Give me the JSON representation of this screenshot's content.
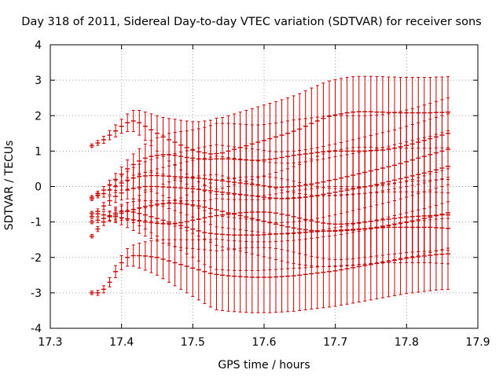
{
  "chart_data": {
    "type": "scatter",
    "title": "Day 318 of 2011, Sidereal Day-to-day VTEC variation (SDTVAR) for receiver sons",
    "xlabel": "GPS time / hours",
    "ylabel": "SDTVAR / TECUs",
    "xlim": [
      17.3,
      17.9
    ],
    "ylim": [
      -4,
      4
    ],
    "xticks": [
      "17.3",
      "17.4",
      "17.5",
      "17.6",
      "17.7",
      "17.8",
      "17.9"
    ],
    "yticks": [
      "-4",
      "-3",
      "-2",
      "-1",
      "0",
      "1",
      "2",
      "3",
      "4"
    ],
    "grid": true,
    "legend": "none",
    "error_bars": true,
    "x_start": 17.3583,
    "x_step": 0.00833,
    "series_color": "#cc0000",
    "series": [
      {
        "start": 17.3583,
        "values": [
          1.15,
          1.23,
          1.32,
          1.45,
          1.57,
          1.7,
          1.8,
          1.85,
          1.8,
          1.7,
          1.6,
          1.5,
          1.4,
          1.32,
          1.25,
          1.17,
          1.1,
          1.03,
          0.98,
          0.95,
          0.92,
          0.93,
          0.95,
          1.0,
          1.05,
          1.1,
          1.15,
          1.2,
          1.25,
          1.3,
          1.35,
          1.4,
          1.45,
          1.5,
          1.56,
          1.62,
          1.7,
          1.78,
          1.85,
          1.92,
          1.98,
          2.02,
          2.05,
          2.08,
          2.1,
          2.11,
          2.11,
          2.11,
          2.1,
          2.1,
          2.09,
          2.09,
          2.08,
          2.08,
          2.08,
          2.08,
          2.08,
          2.08,
          2.09,
          2.09,
          2.1
        ],
        "errors": [
          0.05,
          0.07,
          0.1,
          0.13,
          0.17,
          0.2,
          0.25,
          0.3,
          0.35,
          0.4,
          0.45,
          0.5,
          0.55,
          0.6,
          0.65,
          0.7,
          0.75,
          0.8,
          0.85,
          0.9,
          0.95,
          1.0,
          1.0,
          1.0,
          1.0,
          1.0,
          1.0,
          1.0,
          1.0,
          1.0,
          1.0,
          1.0,
          1.0,
          1.0,
          1.0,
          1.0,
          1.0,
          1.0,
          1.0,
          1.0,
          1.0,
          1.0,
          1.0,
          1.0,
          1.0,
          1.0,
          1.0,
          1.0,
          1.0,
          1.0,
          1.0,
          1.0,
          1.0,
          1.0,
          1.0,
          1.0,
          1.0,
          1.0,
          1.0,
          1.0,
          1.0
        ]
      },
      {
        "start": 17.3583,
        "values": [
          -0.35,
          -0.2,
          -0.1,
          0.05,
          0.2,
          0.35,
          0.5,
          0.62,
          0.72,
          0.8,
          0.85,
          0.88,
          0.9,
          0.9,
          0.88,
          0.85,
          0.82,
          0.8,
          0.78,
          0.77,
          0.77,
          0.78,
          0.78,
          0.78,
          0.77,
          0.76,
          0.75,
          0.74,
          0.74,
          0.75,
          0.77,
          0.79,
          0.82,
          0.85,
          0.88,
          0.9,
          0.92,
          0.94,
          0.96,
          0.98,
          1.0,
          1.0,
          1.0,
          1.0,
          1.0,
          1.0,
          1.0,
          1.01,
          1.02,
          1.03,
          1.05,
          1.08,
          1.12,
          1.16,
          1.2,
          1.25,
          1.3,
          1.35,
          1.4,
          1.45,
          1.5
        ],
        "errors": [
          0.05,
          0.07,
          0.1,
          0.13,
          0.17,
          0.2,
          0.25,
          0.3,
          0.35,
          0.4,
          0.45,
          0.5,
          0.55,
          0.6,
          0.65,
          0.7,
          0.75,
          0.8,
          0.85,
          0.9,
          0.95,
          1.0,
          1.0,
          1.0,
          1.0,
          1.0,
          1.0,
          1.0,
          1.0,
          1.0,
          1.0,
          1.0,
          1.0,
          1.0,
          1.0,
          1.0,
          1.0,
          1.0,
          1.0,
          1.0,
          1.0,
          1.0,
          1.0,
          1.0,
          1.0,
          1.0,
          1.0,
          1.0,
          1.0,
          1.0,
          1.0,
          1.0,
          1.0,
          1.0,
          1.0,
          1.0,
          1.0,
          1.0,
          1.0,
          1.0,
          1.0
        ]
      },
      {
        "start": 17.3583,
        "values": [
          -0.3,
          -0.25,
          -0.2,
          -0.1,
          0.0,
          0.1,
          0.18,
          0.24,
          0.28,
          0.3,
          0.31,
          0.31,
          0.3,
          0.29,
          0.28,
          0.27,
          0.26,
          0.25,
          0.24,
          0.22,
          0.2,
          0.18,
          0.16,
          0.14,
          0.12,
          0.1,
          0.08,
          0.06,
          0.04,
          0.02,
          0.0,
          -0.02,
          -0.02,
          -0.01,
          0.0,
          0.02,
          0.04,
          0.07,
          0.1,
          0.13,
          0.17,
          0.2,
          0.24,
          0.28,
          0.32,
          0.36,
          0.4,
          0.44,
          0.48,
          0.52,
          0.56,
          0.6,
          0.65,
          0.7,
          0.75,
          0.8,
          0.85,
          0.9,
          0.95,
          1.0,
          1.05
        ],
        "errors": [
          0.05,
          0.07,
          0.1,
          0.13,
          0.17,
          0.2,
          0.25,
          0.3,
          0.35,
          0.4,
          0.45,
          0.5,
          0.55,
          0.6,
          0.65,
          0.7,
          0.75,
          0.8,
          0.85,
          0.9,
          0.95,
          1.0,
          1.0,
          1.0,
          1.0,
          1.0,
          1.0,
          1.0,
          1.0,
          1.0,
          1.0,
          1.0,
          1.0,
          1.0,
          1.0,
          1.0,
          1.0,
          1.0,
          1.0,
          1.0,
          1.0,
          1.0,
          1.0,
          1.0,
          1.0,
          1.0,
          1.0,
          1.0,
          1.0,
          1.0,
          1.0,
          1.0,
          1.0,
          1.0,
          1.0,
          1.0,
          1.0,
          1.0,
          1.0,
          1.0,
          1.0
        ]
      },
      {
        "start": 17.3583,
        "values": [
          -0.85,
          -0.7,
          -0.55,
          -0.4,
          -0.28,
          -0.18,
          -0.1,
          -0.05,
          -0.02,
          0.0,
          0.0,
          0.0,
          -0.01,
          -0.02,
          -0.03,
          -0.04,
          -0.05,
          -0.06,
          -0.08,
          -0.1,
          -0.12,
          -0.14,
          -0.16,
          -0.18,
          -0.2,
          -0.22,
          -0.24,
          -0.26,
          -0.28,
          -0.3,
          -0.32,
          -0.33,
          -0.34,
          -0.34,
          -0.33,
          -0.32,
          -0.3,
          -0.28,
          -0.25,
          -0.22,
          -0.19,
          -0.16,
          -0.13,
          -0.1,
          -0.07,
          -0.04,
          -0.01,
          0.02,
          0.06,
          0.1,
          0.14,
          0.18,
          0.22,
          0.26,
          0.3,
          0.34,
          0.38,
          0.42,
          0.47,
          0.52,
          0.57
        ],
        "errors": [
          0.05,
          0.07,
          0.1,
          0.13,
          0.17,
          0.2,
          0.25,
          0.3,
          0.35,
          0.4,
          0.45,
          0.5,
          0.55,
          0.6,
          0.65,
          0.7,
          0.75,
          0.8,
          0.85,
          0.9,
          0.95,
          1.0,
          1.0,
          1.0,
          1.0,
          1.0,
          1.0,
          1.0,
          1.0,
          1.0,
          1.0,
          1.0,
          1.0,
          1.0,
          1.0,
          1.0,
          1.0,
          1.0,
          1.0,
          1.0,
          1.0,
          1.0,
          1.0,
          1.0,
          1.0,
          1.0,
          1.0,
          1.0,
          1.0,
          1.0,
          1.0,
          1.0,
          1.0,
          1.0,
          1.0,
          1.0,
          1.0,
          1.0,
          1.0,
          1.0,
          1.0
        ]
      },
      {
        "start": 17.3583,
        "values": [
          -1.0,
          -0.95,
          -0.9,
          -0.85,
          -0.8,
          -0.75,
          -0.7,
          -0.65,
          -0.6,
          -0.56,
          -0.53,
          -0.5,
          -0.48,
          -0.47,
          -0.47,
          -0.48,
          -0.5,
          -0.52,
          -0.55,
          -0.58,
          -0.62,
          -0.66,
          -0.7,
          -0.74,
          -0.78,
          -0.82,
          -0.86,
          -0.9,
          -0.94,
          -0.98,
          -1.02,
          -1.06,
          -1.1,
          -1.14,
          -1.17,
          -1.2,
          -1.22,
          -1.24,
          -1.25,
          -1.26,
          -1.26,
          -1.26,
          -1.25,
          -1.24,
          -1.23,
          -1.21,
          -1.19,
          -1.17,
          -1.15,
          -1.12,
          -1.09,
          -1.06,
          -1.03,
          -1.0,
          -0.97,
          -0.94,
          -0.9,
          -0.86,
          -0.82,
          -0.78,
          -0.74
        ],
        "errors": [
          0.05,
          0.07,
          0.1,
          0.13,
          0.17,
          0.2,
          0.25,
          0.3,
          0.35,
          0.4,
          0.45,
          0.5,
          0.55,
          0.6,
          0.65,
          0.7,
          0.75,
          0.8,
          0.85,
          0.9,
          0.95,
          1.0,
          1.0,
          1.0,
          1.0,
          1.0,
          1.0,
          1.0,
          1.0,
          1.0,
          1.0,
          1.0,
          1.0,
          1.0,
          1.0,
          1.0,
          1.0,
          1.0,
          1.0,
          1.0,
          1.0,
          1.0,
          1.0,
          1.0,
          1.0,
          1.0,
          1.0,
          1.0,
          1.0,
          1.0,
          1.0,
          1.0,
          1.0,
          1.0,
          1.0,
          1.0,
          1.0,
          1.0,
          1.0,
          1.0,
          1.0
        ]
      },
      {
        "start": 17.3583,
        "values": [
          -0.75,
          -0.77,
          -0.8,
          -0.82,
          -0.85,
          -0.88,
          -0.91,
          -0.94,
          -0.97,
          -1.0,
          -1.02,
          -1.04,
          -1.05,
          -1.05,
          -1.04,
          -1.02,
          -0.99,
          -0.95,
          -0.92,
          -0.88,
          -0.85,
          -0.82,
          -0.8,
          -0.78,
          -0.76,
          -0.74,
          -0.73,
          -0.72,
          -0.72,
          -0.72,
          -0.73,
          -0.75,
          -0.78,
          -0.81,
          -0.85,
          -0.89,
          -0.93,
          -0.97,
          -1.0,
          -1.03,
          -1.05,
          -1.06,
          -1.06,
          -1.05,
          -1.04,
          -1.02,
          -1.0,
          -0.98,
          -0.96,
          -0.94,
          -0.92,
          -0.9,
          -0.88,
          -0.86,
          -0.85,
          -0.84,
          -0.83,
          -0.82,
          -0.81,
          -0.8,
          -0.8
        ],
        "errors": [
          0.05,
          0.07,
          0.1,
          0.13,
          0.17,
          0.2,
          0.25,
          0.3,
          0.35,
          0.4,
          0.45,
          0.5,
          0.55,
          0.6,
          0.65,
          0.7,
          0.75,
          0.8,
          0.85,
          0.9,
          0.95,
          1.0,
          1.0,
          1.0,
          1.0,
          1.0,
          1.0,
          1.0,
          1.0,
          1.0,
          1.0,
          1.0,
          1.0,
          1.0,
          1.0,
          1.0,
          1.0,
          1.0,
          1.0,
          1.0,
          1.0,
          1.0,
          1.0,
          1.0,
          1.0,
          1.0,
          1.0,
          1.0,
          1.0,
          1.0,
          1.0,
          1.0,
          1.0,
          1.0,
          1.0,
          1.0,
          1.0,
          1.0,
          1.0,
          1.0,
          1.0
        ]
      },
      {
        "start": 17.3583,
        "values": [
          -1.4,
          -1.2,
          -1.0,
          -0.85,
          -0.75,
          -0.7,
          -0.7,
          -0.72,
          -0.76,
          -0.8,
          -0.85,
          -0.9,
          -0.95,
          -1.0,
          -1.05,
          -1.1,
          -1.15,
          -1.2,
          -1.25,
          -1.3,
          -1.32,
          -1.34,
          -1.35,
          -1.36,
          -1.37,
          -1.37,
          -1.37,
          -1.37,
          -1.37,
          -1.36,
          -1.35,
          -1.34,
          -1.33,
          -1.32,
          -1.31,
          -1.3,
          -1.29,
          -1.28,
          -1.27,
          -1.26,
          -1.25,
          -1.24,
          -1.23,
          -1.22,
          -1.21,
          -1.2,
          -1.19,
          -1.18,
          -1.17,
          -1.16,
          -1.15,
          -1.15,
          -1.15,
          -1.15,
          -1.15,
          -1.15,
          -1.15,
          -1.15,
          -1.16,
          -1.17,
          -1.18
        ],
        "errors": [
          0.05,
          0.07,
          0.1,
          0.13,
          0.17,
          0.2,
          0.25,
          0.3,
          0.35,
          0.4,
          0.45,
          0.5,
          0.55,
          0.6,
          0.65,
          0.7,
          0.75,
          0.8,
          0.85,
          0.9,
          0.95,
          1.0,
          1.0,
          1.0,
          1.0,
          1.0,
          1.0,
          1.0,
          1.0,
          1.0,
          1.0,
          1.0,
          1.0,
          1.0,
          1.0,
          1.0,
          1.0,
          1.0,
          1.0,
          1.0,
          1.0,
          1.0,
          1.0,
          1.0,
          1.0,
          1.0,
          1.0,
          1.0,
          1.0,
          1.0,
          1.0,
          1.0,
          1.0,
          1.0,
          1.0,
          1.0,
          1.0,
          1.0,
          1.0,
          1.0,
          1.0
        ]
      },
      {
        "start": 17.3583,
        "values": [
          -3.0,
          -3.0,
          -2.9,
          -2.7,
          -2.4,
          -2.15,
          -2.0,
          -1.95,
          -1.95,
          -1.96,
          -1.98,
          -2.0,
          -2.05,
          -2.1,
          -2.15,
          -2.2,
          -2.25,
          -2.3,
          -2.35,
          -2.4,
          -2.45,
          -2.48,
          -2.5,
          -2.52,
          -2.53,
          -2.54,
          -2.55,
          -2.56,
          -2.56,
          -2.56,
          -2.56,
          -2.55,
          -2.54,
          -2.53,
          -2.52,
          -2.5,
          -2.48,
          -2.46,
          -2.44,
          -2.42,
          -2.4,
          -2.38,
          -2.35,
          -2.32,
          -2.29,
          -2.26,
          -2.23,
          -2.2,
          -2.17,
          -2.14,
          -2.11,
          -2.08,
          -2.05,
          -2.02,
          -2.0,
          -1.98,
          -1.96,
          -1.94,
          -1.92,
          -1.91,
          -1.9
        ],
        "errors": [
          0.05,
          0.07,
          0.1,
          0.13,
          0.17,
          0.2,
          0.25,
          0.3,
          0.35,
          0.4,
          0.45,
          0.5,
          0.55,
          0.6,
          0.65,
          0.7,
          0.75,
          0.8,
          0.85,
          0.9,
          0.95,
          1.0,
          1.0,
          1.0,
          1.0,
          1.0,
          1.0,
          1.0,
          1.0,
          1.0,
          1.0,
          1.0,
          1.0,
          1.0,
          1.0,
          1.0,
          1.0,
          1.0,
          1.0,
          1.0,
          1.0,
          1.0,
          1.0,
          1.0,
          1.0,
          1.0,
          1.0,
          1.0,
          1.0,
          1.0,
          1.0,
          1.0,
          1.0,
          1.0,
          1.0,
          1.0,
          1.0,
          1.0,
          1.0,
          1.0,
          1.0
        ]
      }
    ]
  }
}
